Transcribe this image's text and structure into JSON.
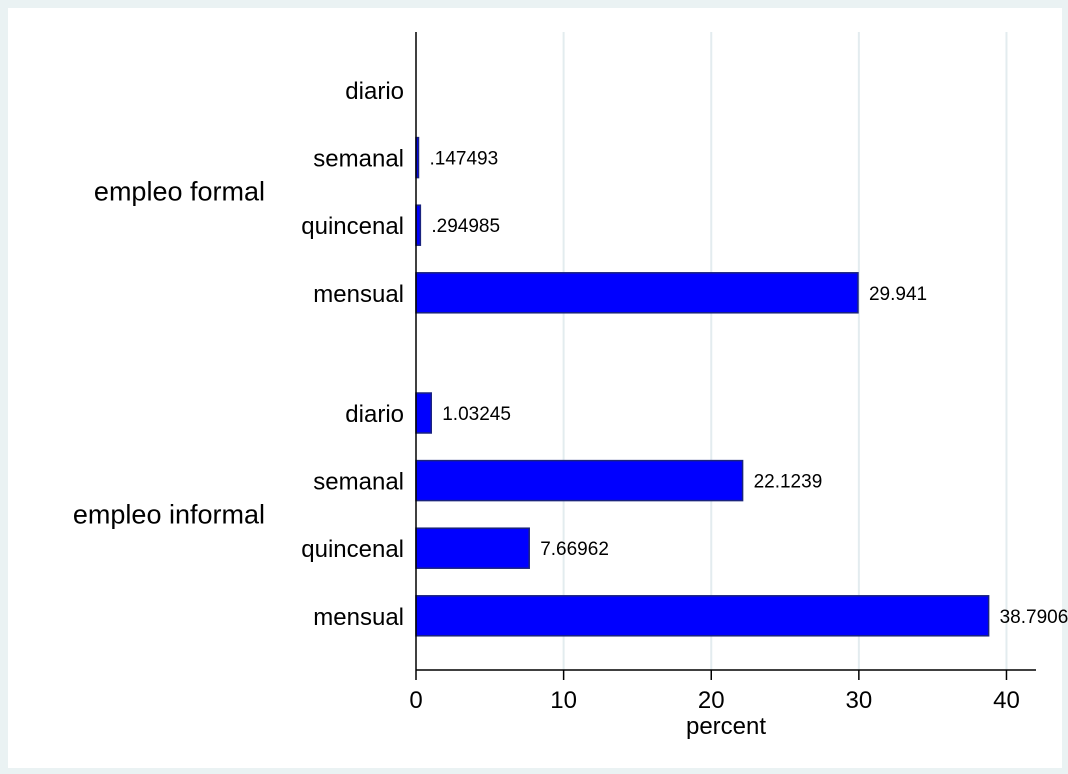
{
  "chart_data": {
    "type": "bar",
    "orientation": "horizontal",
    "title": "",
    "xlabel": "percent",
    "ylabel": "",
    "xlim": [
      0,
      42
    ],
    "x_ticks": [
      0,
      10,
      20,
      30,
      40
    ],
    "grid": true,
    "groups": [
      {
        "label": "empleo formal",
        "categories": [
          "diario",
          "semanal",
          "quincenal",
          "mensual"
        ],
        "values": [
          null,
          0.147493,
          0.294985,
          29.941
        ],
        "value_labels": [
          "",
          ".147493",
          ".294985",
          "29.941"
        ]
      },
      {
        "label": "empleo informal",
        "categories": [
          "diario",
          "semanal",
          "quincenal",
          "mensual"
        ],
        "values": [
          1.03245,
          22.1239,
          7.66962,
          38.7906
        ],
        "value_labels": [
          "1.03245",
          "22.1239",
          "7.66962",
          "38.7906"
        ]
      }
    ],
    "bar_color": "#0000ff",
    "bar_edge_color": "#1a237e"
  }
}
